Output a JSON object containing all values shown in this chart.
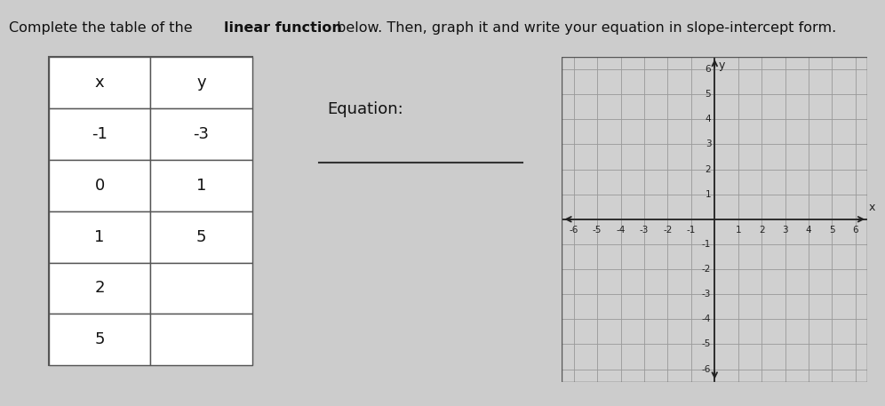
{
  "bg_color": "#cccccc",
  "table_bg": "#f0f0f0",
  "table_x": [
    "x",
    "-1",
    "0",
    "1",
    "2",
    "5"
  ],
  "table_y": [
    "y",
    "-3",
    "1",
    "5",
    "",
    ""
  ],
  "equation_label": "Equation:",
  "grid_color": "#999999",
  "axis_color": "#222222",
  "graph_bg": "#d0d0d0",
  "title_normal1": "Complete the table of the ",
  "title_bold": "linear function",
  "title_normal2": " below. Then, graph it and write your equation in slope-intercept form."
}
